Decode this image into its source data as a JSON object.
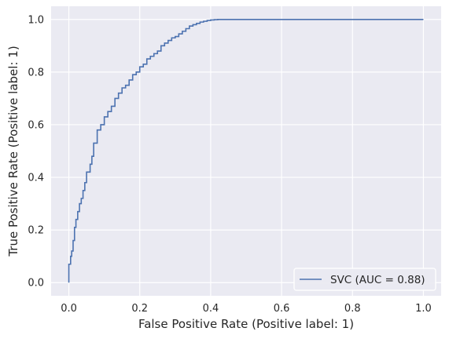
{
  "chart_data": {
    "type": "line",
    "title": "",
    "xlabel": "False Positive Rate (Positive label: 1)",
    "ylabel": "True Positive Rate (Positive label: 1)",
    "xlim": [
      -0.05,
      1.05
    ],
    "ylim": [
      -0.05,
      1.05
    ],
    "xticks": [
      0.0,
      0.2,
      0.4,
      0.6,
      0.8,
      1.0
    ],
    "yticks": [
      0.0,
      0.2,
      0.4,
      0.6,
      0.8,
      1.0
    ],
    "xtick_labels": [
      "0.0",
      "0.2",
      "0.4",
      "0.6",
      "0.8",
      "1.0"
    ],
    "ytick_labels": [
      "0.0",
      "0.2",
      "0.4",
      "0.6",
      "0.8",
      "1.0"
    ],
    "grid": true,
    "legend_position": "lower-right",
    "series": [
      {
        "name": "SVC (AUC = 0.88)",
        "color": "#4c72b0",
        "x": [
          0.0,
          0.0,
          0.005,
          0.008,
          0.012,
          0.016,
          0.02,
          0.025,
          0.03,
          0.035,
          0.04,
          0.045,
          0.05,
          0.06,
          0.065,
          0.07,
          0.08,
          0.09,
          0.1,
          0.11,
          0.12,
          0.13,
          0.14,
          0.15,
          0.16,
          0.17,
          0.18,
          0.19,
          0.2,
          0.21,
          0.22,
          0.23,
          0.24,
          0.25,
          0.26,
          0.27,
          0.28,
          0.29,
          0.3,
          0.31,
          0.32,
          0.33,
          0.34,
          0.35,
          0.36,
          0.37,
          0.38,
          0.39,
          0.4,
          0.41,
          0.42,
          0.43,
          0.44,
          0.5,
          0.6,
          0.7,
          0.8,
          0.9,
          1.0
        ],
        "y": [
          0.0,
          0.03,
          0.07,
          0.1,
          0.12,
          0.16,
          0.21,
          0.24,
          0.27,
          0.3,
          0.32,
          0.35,
          0.38,
          0.42,
          0.45,
          0.48,
          0.53,
          0.58,
          0.6,
          0.63,
          0.65,
          0.67,
          0.7,
          0.72,
          0.74,
          0.75,
          0.77,
          0.79,
          0.8,
          0.82,
          0.83,
          0.85,
          0.86,
          0.87,
          0.88,
          0.9,
          0.91,
          0.92,
          0.93,
          0.935,
          0.945,
          0.955,
          0.965,
          0.975,
          0.98,
          0.985,
          0.99,
          0.993,
          0.996,
          0.998,
          0.999,
          1.0,
          1.0,
          1.0,
          1.0,
          1.0,
          1.0,
          1.0,
          1.0
        ]
      }
    ]
  }
}
